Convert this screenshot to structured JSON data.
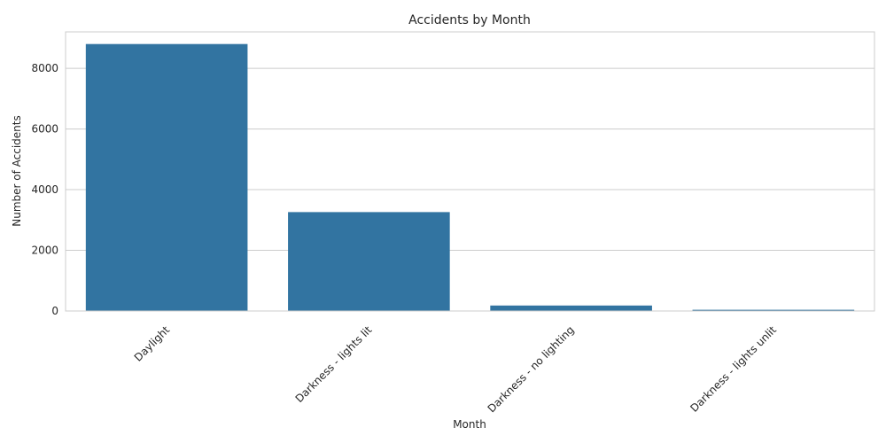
{
  "chart_data": {
    "type": "bar",
    "title": "Accidents by Month",
    "xlabel": "Month",
    "ylabel": "Number of Accidents",
    "categories": [
      "Daylight",
      "Darkness - lights lit",
      "Darkness - no lighting",
      "Darkness - lights unlit"
    ],
    "values": [
      8800,
      3260,
      180,
      40
    ],
    "ylim": [
      0,
      9200
    ],
    "yticks": [
      0,
      2000,
      4000,
      6000,
      8000
    ],
    "ytick_labels": [
      "0",
      "2000",
      "4000",
      "6000",
      "8000"
    ],
    "grid": true,
    "bar_color": "#3274a1",
    "grid_color": "#cccccc"
  }
}
